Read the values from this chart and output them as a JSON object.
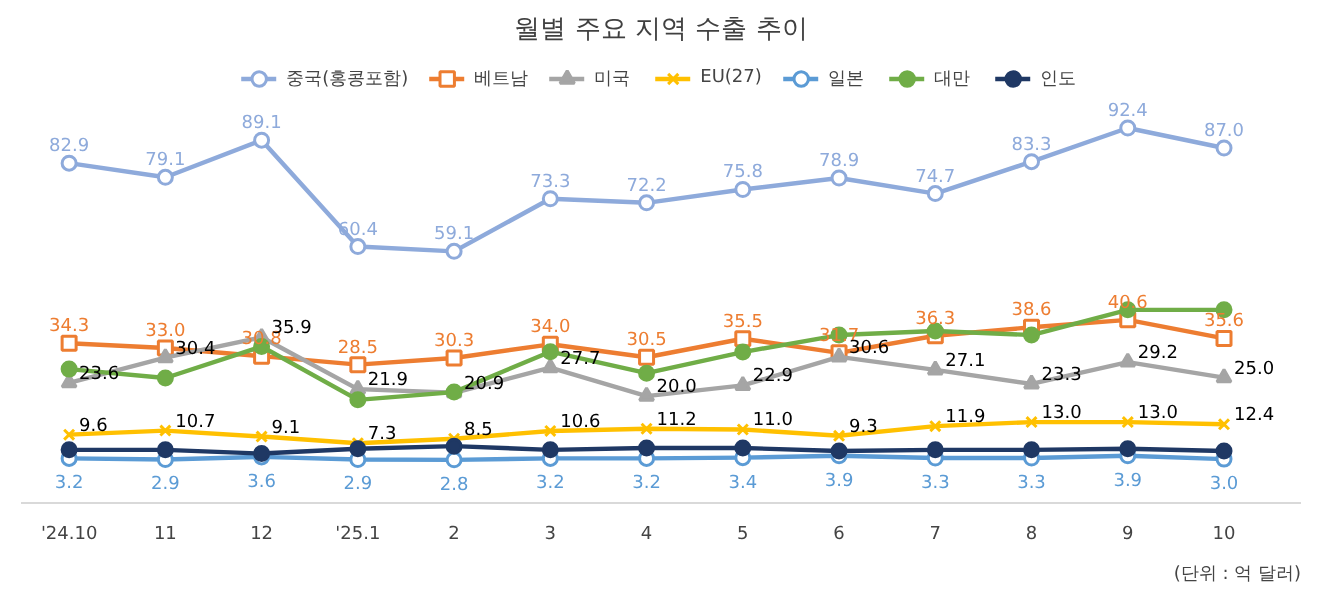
{
  "chart_data": {
    "type": "line",
    "title": "월별 주요 지역 수출 추이",
    "categories": [
      "'24.10",
      "11",
      "12",
      "'25.1",
      "2",
      "3",
      "4",
      "5",
      "6",
      "7",
      "8",
      "9",
      "10"
    ],
    "legend": "top",
    "line_style": "solid",
    "annotations": [
      "(단위 : 억 달러)"
    ],
    "series": [
      {
        "name": "중국(홍콩포함)",
        "color": "#8eaadb",
        "marker": "circle",
        "values": [
          82.9,
          79.1,
          89.1,
          60.4,
          59.1,
          73.3,
          72.2,
          75.8,
          78.9,
          74.7,
          83.3,
          92.4,
          87.0
        ],
        "value_labels": [
          "82.9",
          "79.1",
          "89.1",
          "60.4",
          "59.1",
          "73.3",
          "72.2",
          "75.8",
          "78.9",
          "74.7",
          "83.3",
          "92.4",
          "87.0"
        ]
      },
      {
        "name": "베트남",
        "color": "#ed7d31",
        "marker": "square",
        "values": [
          34.3,
          33.0,
          30.8,
          28.5,
          30.3,
          34.0,
          30.5,
          35.5,
          31.7,
          36.3,
          38.6,
          40.6,
          35.6
        ],
        "value_labels": [
          "34.3",
          "33.0",
          "30.8",
          "28.5",
          "30.3",
          "34.0",
          "30.5",
          "35.5",
          "31.7",
          "36.3",
          "38.6",
          "40.6",
          "35.6"
        ]
      },
      {
        "name": "미국",
        "color": "#a5a5a5",
        "marker": "triangle",
        "values": [
          23.6,
          30.4,
          35.9,
          21.9,
          20.9,
          27.7,
          20.0,
          22.9,
          30.6,
          27.1,
          23.3,
          29.2,
          25.0
        ],
        "value_labels": [
          "23.6",
          "30.4",
          "35.9",
          "21.9",
          "20.9",
          "27.7",
          "20.0",
          "22.9",
          "30.6",
          "27.1",
          "23.3",
          "29.2",
          "25.0"
        ]
      },
      {
        "name": "EU(27)",
        "color": "#ffc000",
        "marker": "cross",
        "values": [
          9.6,
          10.7,
          9.1,
          7.3,
          8.5,
          10.6,
          11.2,
          11.0,
          9.3,
          11.9,
          13.0,
          13.0,
          12.4
        ],
        "value_labels": [
          "9.6",
          "10.7",
          "9.1",
          "7.3",
          "8.5",
          "10.6",
          "11.2",
          "11.0",
          "9.3",
          "11.9",
          "13.0",
          "13.0",
          "12.4"
        ]
      },
      {
        "name": "일본",
        "color": "#5b9bd5",
        "marker": "circle",
        "values": [
          3.2,
          2.9,
          3.6,
          2.9,
          2.8,
          3.2,
          3.2,
          3.4,
          3.9,
          3.3,
          3.3,
          3.9,
          3.0
        ],
        "value_labels": [
          "3.2",
          "2.9",
          "3.6",
          "2.9",
          "2.8",
          "3.2",
          "3.2",
          "3.4",
          "3.9",
          "3.3",
          "3.3",
          "3.9",
          "3.0"
        ]
      },
      {
        "name": "대만",
        "color": "#70ad47",
        "marker": "circle",
        "values": [
          27.3,
          24.9,
          33.4,
          19.0,
          21.1,
          32.0,
          26.2,
          31.9,
          36.5,
          37.6,
          36.5,
          43.3,
          43.3
        ]
      },
      {
        "name": "인도",
        "color": "#1f3864",
        "marker": "circle",
        "values": [
          5.5,
          5.5,
          4.5,
          5.8,
          6.5,
          5.5,
          6.0,
          6.0,
          5.2,
          5.5,
          5.5,
          5.8,
          5.2
        ]
      }
    ]
  }
}
